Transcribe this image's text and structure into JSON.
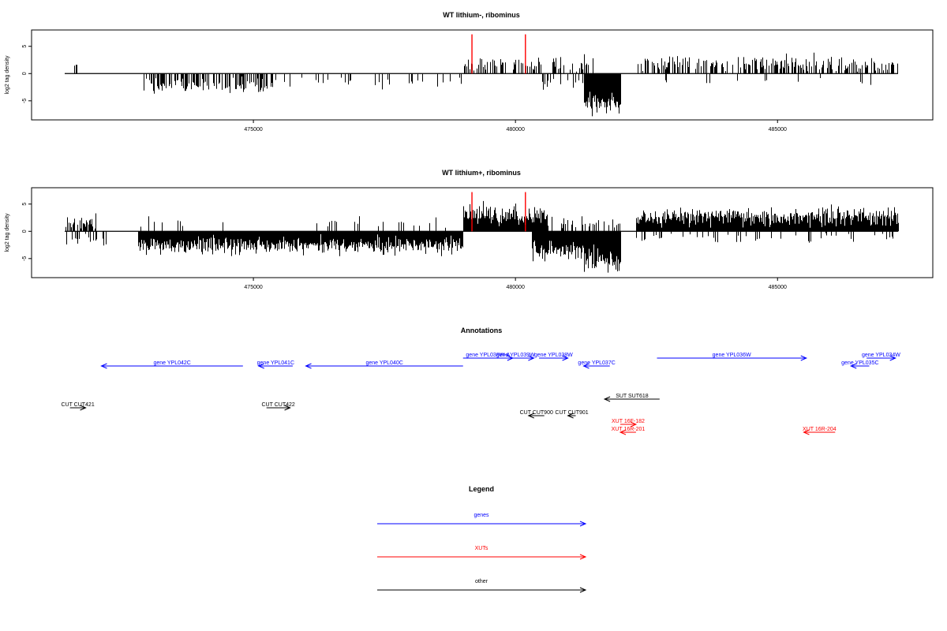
{
  "chart_data": [
    {
      "type": "bar",
      "title": "WT lithium-, ribominus",
      "ylabel": "log2 tag density",
      "xlabel": "",
      "xlim": [
        471200,
        487500
      ],
      "ylim": [
        -8.5,
        8
      ],
      "xticks": [
        475000,
        480000,
        485000
      ],
      "yticks": [
        -5,
        0,
        5
      ],
      "grid": false,
      "highlight_color": "#ff0000",
      "highlights": [
        {
          "x": 479170,
          "y": 7.2
        },
        {
          "x": 480190,
          "y": 7.2
        }
      ],
      "positive_segments": [
        {
          "start": 471400,
          "end": 471700,
          "density": 0.12,
          "mean": 1.2,
          "spread": 0.5
        },
        {
          "start": 479000,
          "end": 480500,
          "density": 0.5,
          "mean": 1.8,
          "spread": 1.0
        },
        {
          "start": 480700,
          "end": 481500,
          "density": 0.3,
          "mean": 1.8,
          "spread": 1.0
        },
        {
          "start": 482300,
          "end": 487300,
          "density": 0.42,
          "mean": 1.8,
          "spread": 1.0
        }
      ],
      "negative_segments": [
        {
          "start": 472900,
          "end": 475400,
          "density": 0.5,
          "mean": -2.2,
          "spread": 1.0
        },
        {
          "start": 475400,
          "end": 479000,
          "density": 0.12,
          "mean": -1.6,
          "spread": 0.8
        },
        {
          "start": 480500,
          "end": 481300,
          "density": 0.2,
          "mean": -1.6,
          "spread": 0.8
        },
        {
          "start": 481300,
          "end": 482000,
          "density": 1.0,
          "mean": -5.5,
          "spread": 1.6
        },
        {
          "start": 482500,
          "end": 487000,
          "density": 0.03,
          "mean": -1.5,
          "spread": 0.6
        }
      ]
    },
    {
      "type": "bar",
      "title": "WT lithium+, ribominus",
      "ylabel": "log2 tag density",
      "xlabel": "",
      "xlim": [
        471200,
        487500
      ],
      "ylim": [
        -8.5,
        8
      ],
      "xticks": [
        475000,
        480000,
        485000
      ],
      "yticks": [
        -5,
        0,
        5
      ],
      "grid": false,
      "highlight_color": "#ff0000",
      "highlights": [
        {
          "x": 479170,
          "y": 7.2
        },
        {
          "x": 480190,
          "y": 7.2
        }
      ],
      "positive_segments": [
        {
          "start": 471400,
          "end": 472000,
          "density": 0.55,
          "mean": 1.8,
          "spread": 1.0
        },
        {
          "start": 472500,
          "end": 479000,
          "density": 0.06,
          "mean": 1.5,
          "spread": 0.8
        },
        {
          "start": 479000,
          "end": 480600,
          "density": 1.0,
          "mean": 3.0,
          "spread": 1.4
        },
        {
          "start": 480600,
          "end": 482000,
          "density": 0.2,
          "mean": 1.6,
          "spread": 0.8
        },
        {
          "start": 482300,
          "end": 487300,
          "density": 1.0,
          "mean": 2.6,
          "spread": 1.2
        }
      ],
      "negative_segments": [
        {
          "start": 471400,
          "end": 472200,
          "density": 0.3,
          "mean": -1.5,
          "spread": 0.7
        },
        {
          "start": 472800,
          "end": 479000,
          "density": 1.0,
          "mean": -2.6,
          "spread": 1.1
        },
        {
          "start": 480300,
          "end": 481300,
          "density": 1.0,
          "mean": -3.5,
          "spread": 1.3
        },
        {
          "start": 481300,
          "end": 482000,
          "density": 1.0,
          "mean": -5.5,
          "spread": 1.6
        },
        {
          "start": 482300,
          "end": 487300,
          "density": 0.15,
          "mean": -1.2,
          "spread": 0.7
        }
      ]
    }
  ],
  "annotations": {
    "title": "Annotations",
    "xlim": [
      471200,
      487500
    ],
    "colors": {
      "gene": "#0000ff",
      "xut": "#ff0000",
      "other": "#000000"
    },
    "features": [
      {
        "label": "gene YPL042C",
        "kind": "gene",
        "start": 472100,
        "end": 474800,
        "strand": "-",
        "lane": 2
      },
      {
        "label": "gene YPL041C",
        "kind": "gene",
        "start": 475100,
        "end": 475750,
        "strand": "-",
        "lane": 2
      },
      {
        "label": "gene YPL040C",
        "kind": "gene",
        "start": 476000,
        "end": 479000,
        "strand": "-",
        "lane": 2
      },
      {
        "label": "gene YPL038W-A",
        "kind": "gene",
        "start": 479000,
        "end": 479950,
        "strand": "+",
        "lane": 1
      },
      {
        "label": "gene YPL039W",
        "kind": "gene",
        "start": 479650,
        "end": 480350,
        "strand": "+",
        "lane": 1
      },
      {
        "label": "gene YPL038W",
        "kind": "gene",
        "start": 480450,
        "end": 481000,
        "strand": "+",
        "lane": 1
      },
      {
        "label": "gene YPL037C",
        "kind": "gene",
        "start": 481300,
        "end": 481800,
        "strand": "-",
        "lane": 2
      },
      {
        "label": "gene YPL036W",
        "kind": "gene",
        "start": 482700,
        "end": 485550,
        "strand": "+",
        "lane": 1
      },
      {
        "label": "gene YPL035C",
        "kind": "gene",
        "start": 486400,
        "end": 486750,
        "strand": "-",
        "lane": 2
      },
      {
        "label": "gene YPL034W",
        "kind": "gene",
        "start": 486700,
        "end": 487250,
        "strand": "+",
        "lane": 1
      },
      {
        "label": "SUT SUT618",
        "kind": "other",
        "start": 481700,
        "end": 482750,
        "strand": "-",
        "lane": 4
      },
      {
        "label": "CUT CUT421",
        "kind": "other",
        "start": 471500,
        "end": 471800,
        "strand": "+",
        "lane": 5
      },
      {
        "label": "CUT CUT422",
        "kind": "other",
        "start": 475250,
        "end": 475700,
        "strand": "+",
        "lane": 5
      },
      {
        "label": "CUT CUT900",
        "kind": "other",
        "start": 480250,
        "end": 480550,
        "strand": "-",
        "lane": 6
      },
      {
        "label": "CUT CUT901",
        "kind": "other",
        "start": 481000,
        "end": 481150,
        "strand": "-",
        "lane": 6
      },
      {
        "label": "XUT 16F-182",
        "kind": "xut",
        "start": 482000,
        "end": 482300,
        "strand": "+",
        "lane": 7
      },
      {
        "label": "XUT 16R-201",
        "kind": "xut",
        "start": 482000,
        "end": 482300,
        "strand": "-",
        "lane": 8
      },
      {
        "label": "XUT 16R-204",
        "kind": "xut",
        "start": 485500,
        "end": 486100,
        "strand": "-",
        "lane": 8
      }
    ]
  },
  "legend": {
    "title": "Legend",
    "items": [
      {
        "label": "genes",
        "color": "#0000ff"
      },
      {
        "label": "XUTs",
        "color": "#ff0000"
      },
      {
        "label": "other",
        "color": "#000000"
      }
    ]
  }
}
